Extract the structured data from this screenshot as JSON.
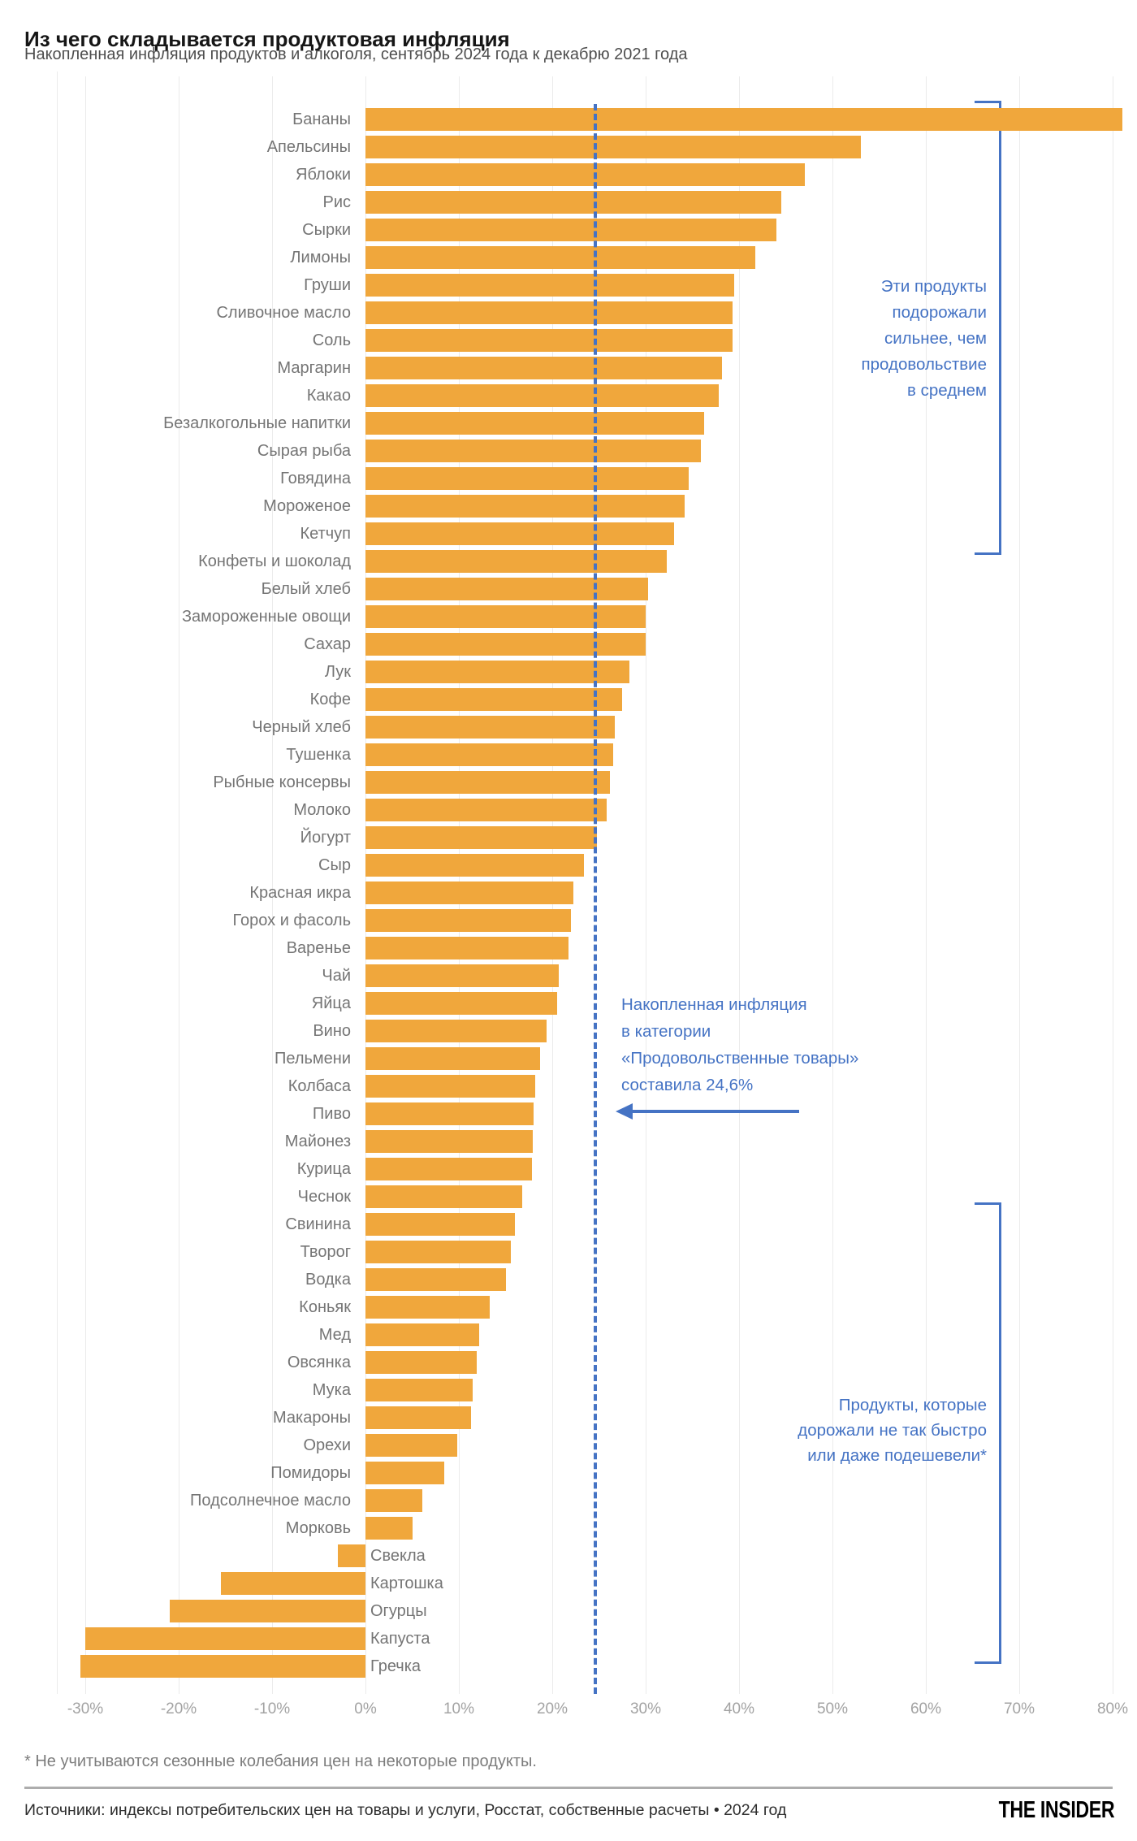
{
  "header": {
    "title": "Из чего складывается продуктовая инфляция",
    "subtitle": "Накопленная инфляция продуктов и алкоголя, сентябрь 2024 года к декабрю 2021 года"
  },
  "chart_data": {
    "type": "bar",
    "orientation": "horizontal",
    "title": "Из чего складывается продуктовая инфляция",
    "subtitle": "Накопленная инфляция продуктов и алкоголя, сентябрь 2024 года к декабрю 2021 года",
    "unit": "%",
    "xlim": [
      -30,
      80
    ],
    "grid": true,
    "x_tick_values": [
      -30,
      -20,
      -10,
      0,
      10,
      20,
      30,
      40,
      50,
      60,
      70,
      80
    ],
    "xlabel_ticks": [
      "-30%",
      "-20%",
      "-10%",
      "0%",
      "10%",
      "20%",
      "30%",
      "40%",
      "50%",
      "60%",
      "70%",
      "80%"
    ],
    "categories": [
      "Бананы",
      "Апельсины",
      "Яблоки",
      "Рис",
      "Сырки",
      "Лимоны",
      "Груши",
      "Сливочное масло",
      "Соль",
      "Маргарин",
      "Какао",
      "Безалкогольные напитки",
      "Сырая рыба",
      "Говядина",
      "Мороженое",
      "Кетчуп",
      "Конфеты и шоколад",
      "Белый хлеб",
      "Замороженные овощи",
      "Сахар",
      "Лук",
      "Кофе",
      "Черный хлеб",
      "Тушенка",
      "Рыбные консервы",
      "Молоко",
      "Йогурт",
      "Сыр",
      "Красная икра",
      "Горох и фасоль",
      "Варенье",
      "Чай",
      "Яйца",
      "Вино",
      "Пельмени",
      "Колбаса",
      "Пиво",
      "Майонез",
      "Курица",
      "Чеснок",
      "Свинина",
      "Творог",
      "Водка",
      "Коньяк",
      "Мед",
      "Овсянка",
      "Мука",
      "Макароны",
      "Орехи",
      "Помидоры",
      "Подсолнечное масло",
      "Морковь",
      "Свекла",
      "Картошка",
      "Огурцы",
      "Капуста",
      "Гречка"
    ],
    "values": [
      81,
      53,
      47,
      44.5,
      44,
      41.7,
      39.5,
      39.3,
      39.3,
      38.2,
      37.8,
      36.3,
      35.9,
      34.6,
      34.2,
      33,
      32.3,
      30.3,
      30,
      30,
      28.3,
      27.5,
      26.7,
      26.5,
      26.2,
      25.8,
      24.8,
      23.4,
      22.3,
      22,
      21.7,
      20.7,
      20.5,
      19.4,
      18.7,
      18.2,
      18,
      17.9,
      17.8,
      16.8,
      16,
      15.6,
      15,
      13.3,
      12.2,
      11.9,
      11.5,
      11.3,
      9.8,
      8.4,
      6.1,
      5,
      -3,
      -15.5,
      -21,
      -30,
      -30.5
    ],
    "reference_line": {
      "value": 24.6,
      "style": "dashed",
      "label": "Накопленная инфляция в категории «Продовольственные товары» составила 24,6%"
    },
    "legend": null
  },
  "annotations": {
    "upper_bracket": {
      "lines": [
        "Эти продукты",
        "подорожали",
        "сильнее, чем",
        "продовольствие",
        "в среднем"
      ]
    },
    "middle": {
      "lines": [
        "Накопленная инфляция",
        "в категории",
        "«Продовольственные товары»",
        "составила 24,6%"
      ]
    },
    "lower_bracket": {
      "lines": [
        "Продукты, которые",
        "дорожали не так быстро",
        "или даже подешевели*"
      ]
    }
  },
  "footer": {
    "footnote": "* Не учитываются сезонные колебания цен на некоторые продукты.",
    "source": "Источники: индексы потребительских цен на товары и услуги, Росстат, собственные расчеты • 2024 год",
    "brand": "THE INSIDER"
  },
  "colors": {
    "bar": "#F0A73C",
    "accent": "#4573C4",
    "grid": "#EBEBEB",
    "label": "#757575",
    "axis": "#A3A3A3",
    "title": "#161616",
    "subtitle": "#4E4E4E",
    "footnote": "#7D7D7D",
    "source": "#2E2E2E",
    "divider": "#ADADAD"
  }
}
